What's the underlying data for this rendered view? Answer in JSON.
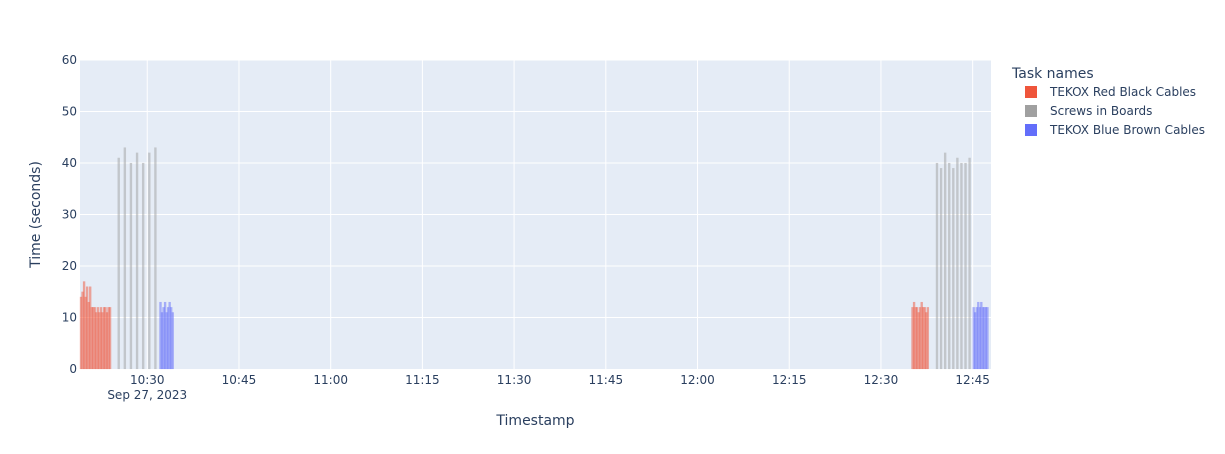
{
  "chart_data": {
    "type": "bar",
    "xlabel": "Timestamp",
    "ylabel": "Time (seconds)",
    "ylim": [
      0,
      60
    ],
    "y_ticks": [
      0,
      10,
      20,
      30,
      40,
      50,
      60
    ],
    "x_range": [
      "2023-09-27 10:19:00",
      "2023-09-27 12:48:00"
    ],
    "x_ticks": [
      {
        "t": "2023-09-27 10:30:00",
        "label": "10:30",
        "sublabel": "Sep 27, 2023"
      },
      {
        "t": "2023-09-27 10:45:00",
        "label": "10:45"
      },
      {
        "t": "2023-09-27 11:00:00",
        "label": "11:00"
      },
      {
        "t": "2023-09-27 11:15:00",
        "label": "11:15"
      },
      {
        "t": "2023-09-27 11:30:00",
        "label": "11:30"
      },
      {
        "t": "2023-09-27 11:45:00",
        "label": "11:45"
      },
      {
        "t": "2023-09-27 12:00:00",
        "label": "12:00"
      },
      {
        "t": "2023-09-27 12:15:00",
        "label": "12:15"
      },
      {
        "t": "2023-09-27 12:30:00",
        "label": "12:30"
      },
      {
        "t": "2023-09-27 12:45:00",
        "label": "12:45"
      }
    ],
    "grid": true,
    "legend_title": "Task names",
    "legend_position": "right",
    "series": [
      {
        "name": "TEKOX Red Black Cables",
        "color": "#EF553B",
        "x": [
          "2023-09-27 10:19:10",
          "2023-09-27 10:19:25",
          "2023-09-27 10:19:40",
          "2023-09-27 10:19:55",
          "2023-09-27 10:20:10",
          "2023-09-27 10:20:25",
          "2023-09-27 10:20:40",
          "2023-09-27 10:20:55",
          "2023-09-27 10:21:10",
          "2023-09-27 10:21:25",
          "2023-09-27 10:21:40",
          "2023-09-27 10:21:55",
          "2023-09-27 10:22:10",
          "2023-09-27 10:22:25",
          "2023-09-27 10:22:40",
          "2023-09-27 10:22:55",
          "2023-09-27 10:23:10",
          "2023-09-27 10:23:25",
          "2023-09-27 10:23:40",
          "2023-09-27 10:23:55",
          "2023-09-27 12:35:10",
          "2023-09-27 12:35:25",
          "2023-09-27 12:35:40",
          "2023-09-27 12:35:55",
          "2023-09-27 12:36:10",
          "2023-09-27 12:36:25",
          "2023-09-27 12:36:40",
          "2023-09-27 12:36:55",
          "2023-09-27 12:37:10",
          "2023-09-27 12:37:25",
          "2023-09-27 12:37:40"
        ],
        "y": [
          14,
          15,
          17,
          14,
          16,
          13,
          16,
          12,
          12,
          12,
          11,
          12,
          11,
          12,
          11,
          12,
          12,
          11,
          12,
          12,
          12,
          13,
          12,
          12,
          11,
          12,
          13,
          12,
          12,
          11,
          12
        ]
      },
      {
        "name": "Screws in Boards",
        "color": "#A0A0A0",
        "x": [
          "2023-09-27 10:25:20",
          "2023-09-27 10:26:20",
          "2023-09-27 10:27:20",
          "2023-09-27 10:28:20",
          "2023-09-27 10:29:20",
          "2023-09-27 10:30:20",
          "2023-09-27 10:31:20",
          "2023-09-27 12:39:10",
          "2023-09-27 12:39:50",
          "2023-09-27 12:40:30",
          "2023-09-27 12:41:10",
          "2023-09-27 12:41:50",
          "2023-09-27 12:42:30",
          "2023-09-27 12:43:10",
          "2023-09-27 12:43:50",
          "2023-09-27 12:44:30"
        ],
        "y": [
          41,
          43,
          40,
          42,
          40,
          42,
          43,
          40,
          39,
          42,
          40,
          39,
          41,
          40,
          40,
          41
        ]
      },
      {
        "name": "TEKOX Blue Brown Cables",
        "color": "#636EFA",
        "x": [
          "2023-09-27 10:32:10",
          "2023-09-27 10:32:25",
          "2023-09-27 10:32:40",
          "2023-09-27 10:32:55",
          "2023-09-27 10:33:10",
          "2023-09-27 10:33:25",
          "2023-09-27 10:33:40",
          "2023-09-27 10:33:55",
          "2023-09-27 10:34:10",
          "2023-09-27 12:45:10",
          "2023-09-27 12:45:25",
          "2023-09-27 12:45:40",
          "2023-09-27 12:45:55",
          "2023-09-27 12:46:10",
          "2023-09-27 12:46:25",
          "2023-09-27 12:46:40",
          "2023-09-27 12:46:55",
          "2023-09-27 12:47:10",
          "2023-09-27 12:47:25"
        ],
        "y": [
          13,
          11,
          12,
          13,
          11,
          12,
          13,
          12,
          11,
          12,
          11,
          12,
          13,
          12,
          13,
          12,
          12,
          12,
          12
        ]
      }
    ]
  }
}
